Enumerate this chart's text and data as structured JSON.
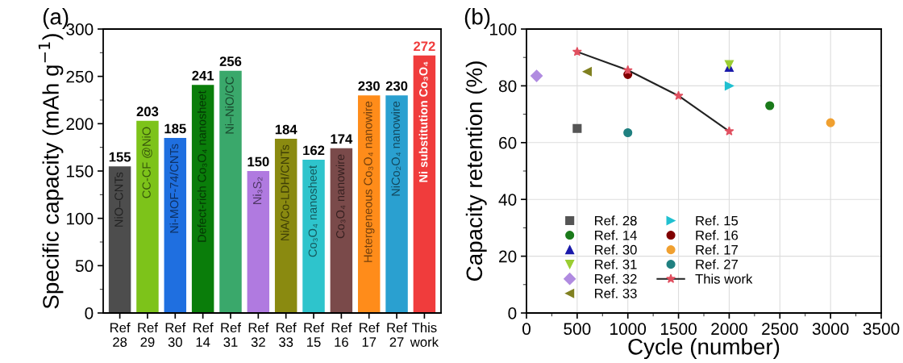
{
  "chart_data": [
    {
      "type": "bar",
      "title": "(a)",
      "ylabel": "Specific capacity (mAh g$^{−1}$)",
      "categories": [
        "Ref\n28",
        "Ref\n29",
        "Ref\n30",
        "Ref\n14",
        "Ref\n31",
        "Ref\n32",
        "Ref\n33",
        "Ref\n15",
        "Ref\n16",
        "Ref\n17",
        "Ref\n27",
        "This\nwork"
      ],
      "values": [
        155,
        203,
        185,
        241,
        256,
        150,
        184,
        162,
        174,
        230,
        230,
        272
      ],
      "colors": [
        "#4d4d4d",
        "#7dc31a",
        "#1f6fe0",
        "#0a7d0a",
        "#3aa86b",
        "#b07ae0",
        "#8a8a10",
        "#2ec4cc",
        "#7a4a4a",
        "#ff8c1a",
        "#2aa0d0",
        "#f03c3c"
      ],
      "annotations": [
        "NiO–CNTs",
        "CC-CF @NiO",
        "Ni-MOF-74/CNTs",
        "Defect-rich Co₃O₄ nanosheet",
        "Ni–NiO/CC",
        "Ni₃S₂",
        "NiA/Co-LDH/CNTs",
        "Co₃O₄ nanosheet",
        "Co₃O₄ nanowire",
        "Hetergeneous Co₃O₄ nanowire",
        "NiCo₂O₄ nanowire",
        "Ni substitution Co₃O₄"
      ],
      "data_labels": true,
      "ylim": [
        0,
        300
      ],
      "yticks": [
        0,
        50,
        100,
        150,
        200,
        250,
        300
      ],
      "grid": false
    },
    {
      "type": "scatter",
      "title": "(b)",
      "xlabel": "Cycle (number)",
      "ylabel": "Capacity retention (%)",
      "series": [
        {
          "name": "Ref. 28",
          "color": "#555555",
          "marker": "square",
          "x": [
            500
          ],
          "values": [
            65
          ]
        },
        {
          "name": "Ref. 14",
          "color": "#1a7a1a",
          "marker": "circle",
          "x": [
            2400
          ],
          "values": [
            73
          ]
        },
        {
          "name": "Ref. 30",
          "color": "#1a1aaa",
          "marker": "triangle",
          "x": [
            2000
          ],
          "values": [
            86.5
          ]
        },
        {
          "name": "Ref. 31",
          "color": "#9acd32",
          "marker": "triangle_down",
          "x": [
            2000
          ],
          "values": [
            87.5
          ]
        },
        {
          "name": "Ref. 32",
          "color": "#b08be0",
          "marker": "diamond",
          "x": [
            100
          ],
          "values": [
            83.5
          ]
        },
        {
          "name": "Ref. 33",
          "color": "#808020",
          "marker": "triangle_left",
          "x": [
            600
          ],
          "values": [
            85
          ]
        },
        {
          "name": "Ref. 15",
          "color": "#20c0d0",
          "marker": "triangle_right",
          "x": [
            2000
          ],
          "values": [
            80
          ]
        },
        {
          "name": "Ref. 16",
          "color": "#800000",
          "marker": "circle",
          "x": [
            1000
          ],
          "values": [
            84
          ]
        },
        {
          "name": "Ref. 17",
          "color": "#f0a030",
          "marker": "circle",
          "x": [
            3000
          ],
          "values": [
            67
          ]
        },
        {
          "name": "Ref. 27",
          "color": "#208080",
          "marker": "circle",
          "x": [
            1000
          ],
          "values": [
            63.5
          ]
        },
        {
          "name": "This work",
          "type": "line",
          "color": "#e05060",
          "marker": "star",
          "x": [
            500,
            1000,
            1500,
            2000
          ],
          "values": [
            92,
            85.5,
            76.5,
            64
          ]
        }
      ],
      "xlim": [
        0,
        3500
      ],
      "xticks": [
        0,
        500,
        1000,
        1500,
        2000,
        2500,
        3000,
        3500
      ],
      "ylim": [
        0,
        100
      ],
      "yticks": [
        0,
        20,
        40,
        60,
        80,
        100
      ],
      "grid": true,
      "legend": "bottom left"
    }
  ]
}
